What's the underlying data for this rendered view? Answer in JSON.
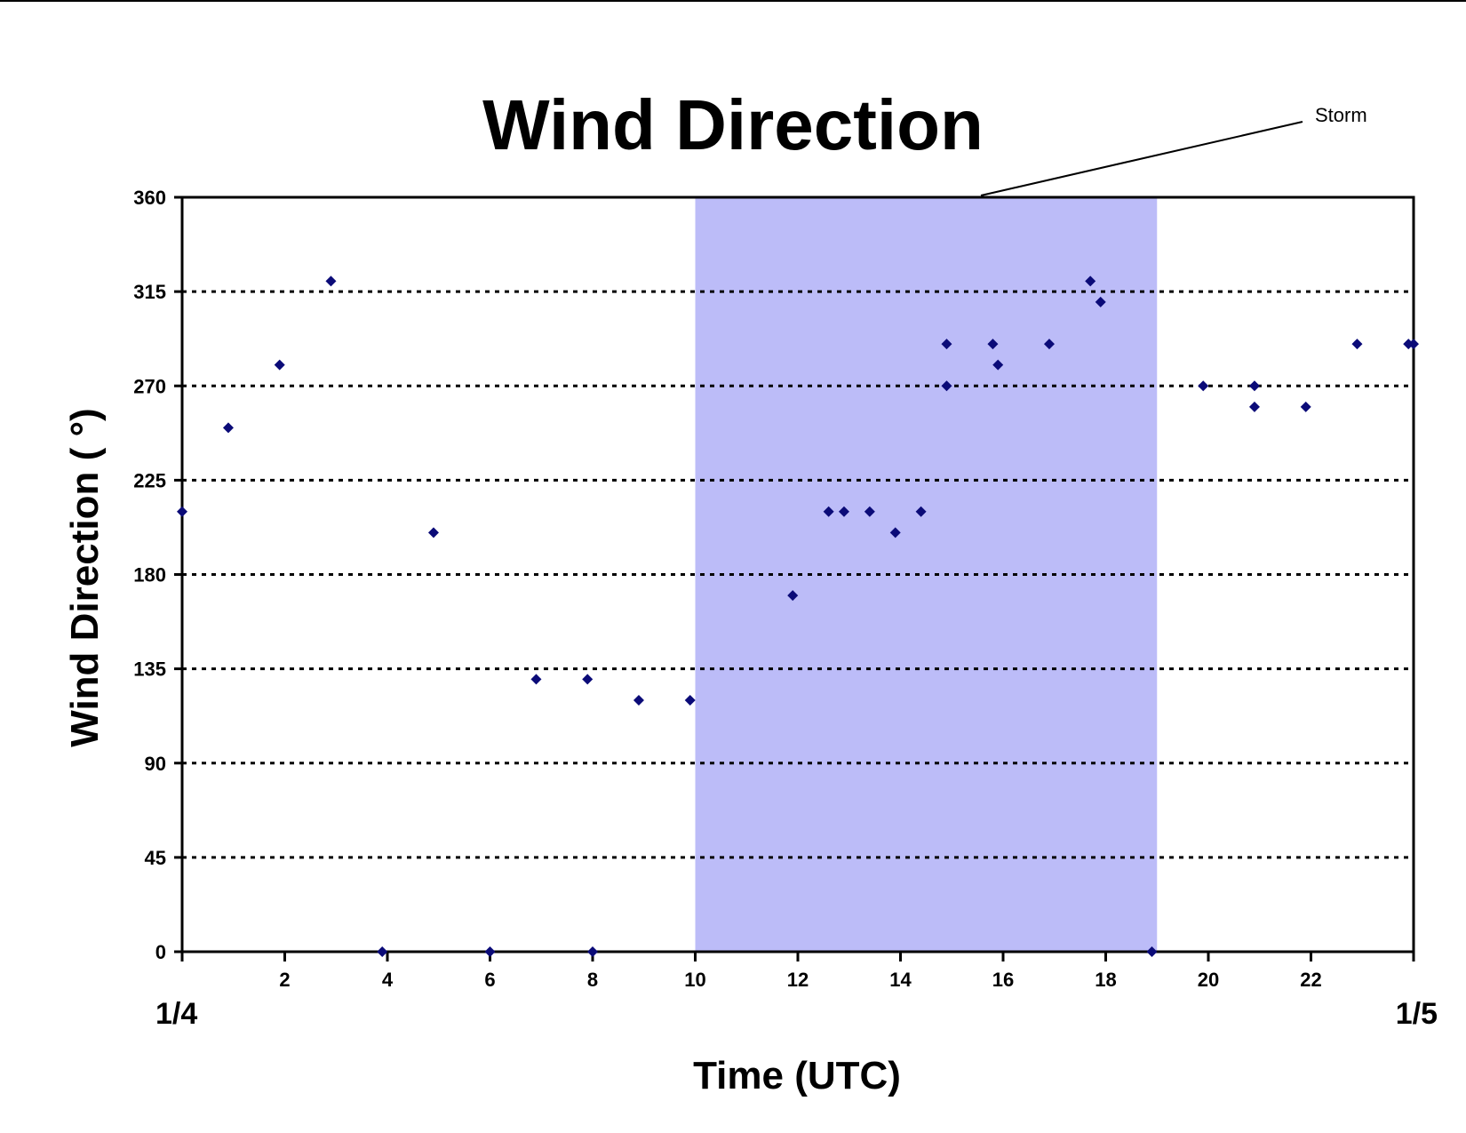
{
  "chart_data": {
    "type": "scatter",
    "title": "Wind Direction",
    "xlabel": "Time (UTC)",
    "ylabel": "Wind Direction ( °)",
    "xlim": [
      0,
      24
    ],
    "ylim": [
      0,
      360
    ],
    "x_ticks": [
      0,
      2,
      4,
      6,
      8,
      10,
      12,
      14,
      16,
      18,
      20,
      22,
      24
    ],
    "x_tick_labels": [
      "",
      "2",
      "4",
      "6",
      "8",
      "10",
      "12",
      "14",
      "16",
      "18",
      "20",
      "22",
      ""
    ],
    "y_ticks": [
      0,
      45,
      90,
      135,
      180,
      225,
      270,
      315,
      360
    ],
    "y_tick_labels": [
      "0",
      "45",
      "90",
      "135",
      "180",
      "225",
      "270",
      "315",
      "360"
    ],
    "date_start_label": "1/4",
    "date_end_label": "1/5",
    "grid": "horizontal dotted",
    "legend": "none",
    "highlight": {
      "label": "Storm",
      "x_start": 10,
      "x_end": 19,
      "color": "#bcbcf8"
    },
    "marker_color": "#0b0b78",
    "series": [
      {
        "points": [
          [
            0,
            210
          ],
          [
            0.9,
            250
          ],
          [
            1.9,
            280
          ],
          [
            2.9,
            320
          ],
          [
            3.9,
            0
          ],
          [
            4.9,
            200
          ],
          [
            6.0,
            0
          ],
          [
            6.9,
            130
          ],
          [
            7.9,
            130
          ],
          [
            8.0,
            0
          ],
          [
            8.9,
            120
          ],
          [
            9.9,
            120
          ],
          [
            11.9,
            170
          ],
          [
            12.6,
            210
          ],
          [
            12.9,
            210
          ],
          [
            13.4,
            210
          ],
          [
            13.9,
            200
          ],
          [
            14.4,
            210
          ],
          [
            14.9,
            270
          ],
          [
            14.9,
            290
          ],
          [
            15.8,
            290
          ],
          [
            15.9,
            280
          ],
          [
            16.9,
            290
          ],
          [
            17.7,
            320
          ],
          [
            17.9,
            310
          ],
          [
            18.9,
            0
          ],
          [
            19.9,
            270
          ],
          [
            20.9,
            270
          ],
          [
            20.9,
            260
          ],
          [
            21.9,
            260
          ],
          [
            22.9,
            290
          ],
          [
            23.9,
            290
          ],
          [
            24,
            290
          ]
        ]
      }
    ]
  }
}
